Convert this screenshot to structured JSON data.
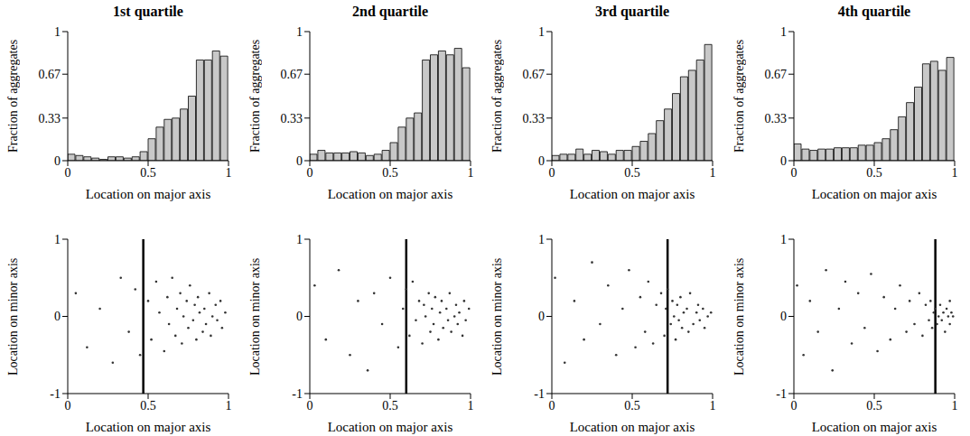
{
  "chart_data": [
    {
      "type": "histogram",
      "title": "1st quartile",
      "bins": [
        0,
        0.05,
        0.1,
        0.15,
        0.2,
        0.25,
        0.3,
        0.35,
        0.4,
        0.45,
        0.5,
        0.55,
        0.6,
        0.65,
        0.7,
        0.75,
        0.8,
        0.85,
        0.9,
        0.95,
        1
      ],
      "values": [
        0.05,
        0.04,
        0.03,
        0.02,
        0.01,
        0.03,
        0.03,
        0.02,
        0.03,
        0.07,
        0.17,
        0.26,
        0.32,
        0.33,
        0.4,
        0.5,
        0.78,
        0.78,
        0.85,
        0.81
      ],
      "color": "#c8c8c8",
      "xlim": [
        0,
        1
      ],
      "xticks": [
        0,
        0.5,
        1
      ],
      "ylim": [
        0,
        1
      ],
      "yticks": [
        0,
        0.33,
        0.67,
        1
      ],
      "x_label": "Location on major axis",
      "y_label": "Fraction of aggregates"
    },
    {
      "type": "histogram",
      "title": "2nd quartile",
      "bins": [
        0,
        0.05,
        0.1,
        0.15,
        0.2,
        0.25,
        0.3,
        0.35,
        0.4,
        0.45,
        0.5,
        0.55,
        0.6,
        0.65,
        0.7,
        0.75,
        0.8,
        0.85,
        0.9,
        0.95,
        1
      ],
      "values": [
        0.05,
        0.08,
        0.06,
        0.06,
        0.06,
        0.07,
        0.06,
        0.04,
        0.05,
        0.08,
        0.14,
        0.26,
        0.33,
        0.37,
        0.78,
        0.82,
        0.85,
        0.82,
        0.87,
        0.72
      ],
      "color": "#c8c8c8",
      "xlim": [
        0,
        1
      ],
      "xticks": [
        0,
        0.5,
        1
      ],
      "ylim": [
        0,
        1
      ],
      "yticks": [
        0,
        0.33,
        0.67,
        1
      ],
      "x_label": "Location on major axis",
      "y_label": "Fraction of aggregates"
    },
    {
      "type": "histogram",
      "title": "3rd quartile",
      "bins": [
        0,
        0.05,
        0.1,
        0.15,
        0.2,
        0.25,
        0.3,
        0.35,
        0.4,
        0.45,
        0.5,
        0.55,
        0.6,
        0.65,
        0.7,
        0.75,
        0.8,
        0.85,
        0.9,
        0.95,
        1
      ],
      "values": [
        0.04,
        0.05,
        0.05,
        0.09,
        0.05,
        0.08,
        0.07,
        0.05,
        0.08,
        0.08,
        0.11,
        0.15,
        0.21,
        0.31,
        0.4,
        0.52,
        0.65,
        0.7,
        0.78,
        0.9
      ],
      "color": "#c8c8c8",
      "xlim": [
        0,
        1
      ],
      "xticks": [
        0,
        0.5,
        1
      ],
      "ylim": [
        0,
        1
      ],
      "yticks": [
        0,
        0.33,
        0.67,
        1
      ],
      "x_label": "Location on major axis",
      "y_label": "Fraction of aggregates"
    },
    {
      "type": "histogram",
      "title": "4th quartile",
      "bins": [
        0,
        0.05,
        0.1,
        0.15,
        0.2,
        0.25,
        0.3,
        0.35,
        0.4,
        0.45,
        0.5,
        0.55,
        0.6,
        0.65,
        0.7,
        0.75,
        0.8,
        0.85,
        0.9,
        0.95,
        1
      ],
      "values": [
        0.13,
        0.09,
        0.08,
        0.09,
        0.09,
        0.1,
        0.1,
        0.1,
        0.12,
        0.12,
        0.14,
        0.17,
        0.24,
        0.34,
        0.45,
        0.57,
        0.75,
        0.77,
        0.7,
        0.8
      ],
      "color": "#c8c8c8",
      "xlim": [
        0,
        1
      ],
      "xticks": [
        0,
        0.5,
        1
      ],
      "ylim": [
        0,
        1
      ],
      "yticks": [
        0,
        0.33,
        0.67,
        1
      ],
      "x_label": "Location on major axis",
      "y_label": "Fraction of aggregates"
    },
    {
      "type": "scatter",
      "x": [
        0.05,
        0.12,
        0.2,
        0.28,
        0.33,
        0.38,
        0.42,
        0.45,
        0.5,
        0.52,
        0.55,
        0.57,
        0.6,
        0.62,
        0.63,
        0.65,
        0.67,
        0.68,
        0.7,
        0.71,
        0.72,
        0.74,
        0.75,
        0.76,
        0.78,
        0.79,
        0.8,
        0.81,
        0.82,
        0.84,
        0.85,
        0.86,
        0.88,
        0.89,
        0.9,
        0.92,
        0.93,
        0.95,
        0.96,
        0.98
      ],
      "y": [
        0.3,
        -0.4,
        0.1,
        -0.6,
        0.5,
        -0.2,
        0.35,
        -0.5,
        0.2,
        -0.3,
        0.45,
        0.05,
        -0.45,
        0.25,
        -0.1,
        0.5,
        -0.25,
        0.1,
        0.3,
        -0.35,
        0,
        0.2,
        -0.15,
        0.4,
        -0.05,
        0.15,
        -0.3,
        0.25,
        0.05,
        -0.2,
        0.1,
        -0.1,
        0.3,
        -0.25,
        0,
        0.15,
        -0.05,
        0.2,
        -0.15,
        0.05
      ],
      "threshold": 0.47,
      "color": "#333333",
      "xlim": [
        0,
        1
      ],
      "xticks": [
        0,
        0.5,
        1
      ],
      "ylim": [
        -1,
        1
      ],
      "yticks": [
        -1,
        0,
        1
      ],
      "x_label": "Location on major axis",
      "y_label": "Location on minor axis"
    },
    {
      "type": "scatter",
      "x": [
        0.03,
        0.1,
        0.18,
        0.25,
        0.3,
        0.36,
        0.4,
        0.45,
        0.5,
        0.55,
        0.58,
        0.6,
        0.62,
        0.64,
        0.66,
        0.68,
        0.7,
        0.71,
        0.72,
        0.74,
        0.75,
        0.76,
        0.77,
        0.78,
        0.8,
        0.81,
        0.82,
        0.83,
        0.85,
        0.86,
        0.87,
        0.88,
        0.9,
        0.91,
        0.92,
        0.93,
        0.95,
        0.96,
        0.97,
        0.99
      ],
      "y": [
        0.4,
        -0.3,
        0.6,
        -0.5,
        0.2,
        -0.7,
        0.3,
        -0.1,
        0.5,
        -0.4,
        0.1,
        0.35,
        -0.25,
        0.45,
        -0.05,
        0.2,
        -0.35,
        0.15,
        0,
        0.3,
        -0.2,
        0.1,
        -0.1,
        0.25,
        -0.3,
        0.05,
        0.2,
        -0.15,
        0.1,
        -0.05,
        0.3,
        -0.2,
        0,
        0.15,
        -0.1,
        0.05,
        -0.25,
        0.2,
        -0.05,
        0.1
      ],
      "threshold": 0.6,
      "color": "#333333",
      "xlim": [
        0,
        1
      ],
      "xticks": [
        0,
        0.5,
        1
      ],
      "ylim": [
        -1,
        1
      ],
      "yticks": [
        -1,
        0,
        1
      ],
      "x_label": "Location on major axis",
      "y_label": "Location on minor axis"
    },
    {
      "type": "scatter",
      "x": [
        0.02,
        0.08,
        0.14,
        0.2,
        0.25,
        0.3,
        0.35,
        0.4,
        0.44,
        0.48,
        0.52,
        0.55,
        0.58,
        0.6,
        0.63,
        0.65,
        0.68,
        0.7,
        0.71,
        0.72,
        0.74,
        0.75,
        0.76,
        0.77,
        0.78,
        0.79,
        0.8,
        0.81,
        0.82,
        0.84,
        0.85,
        0.86,
        0.88,
        0.9,
        0.91,
        0.92,
        0.94,
        0.95,
        0.97,
        0.99
      ],
      "y": [
        0.5,
        -0.6,
        0.2,
        -0.3,
        0.7,
        -0.1,
        0.4,
        -0.5,
        0.1,
        0.6,
        -0.4,
        0.25,
        -0.2,
        0.45,
        -0.35,
        0.15,
        0.3,
        -0.25,
        0.1,
        0.35,
        -0.1,
        0.2,
        0,
        -0.3,
        0.15,
        -0.05,
        0.25,
        -0.15,
        0.05,
        0.1,
        -0.2,
        0.3,
        -0.1,
        0.05,
        0.15,
        -0.05,
        0.1,
        -0.15,
        0,
        0.05
      ],
      "threshold": 0.72,
      "color": "#333333",
      "xlim": [
        0,
        1
      ],
      "xticks": [
        0,
        0.5,
        1
      ],
      "ylim": [
        -1,
        1
      ],
      "yticks": [
        -1,
        0,
        1
      ],
      "x_label": "Location on major axis",
      "y_label": "Location on minor axis"
    },
    {
      "type": "scatter",
      "x": [
        0.02,
        0.06,
        0.1,
        0.15,
        0.2,
        0.24,
        0.28,
        0.32,
        0.36,
        0.4,
        0.44,
        0.48,
        0.52,
        0.56,
        0.6,
        0.63,
        0.66,
        0.7,
        0.72,
        0.75,
        0.78,
        0.8,
        0.82,
        0.84,
        0.85,
        0.86,
        0.87,
        0.88,
        0.89,
        0.9,
        0.91,
        0.92,
        0.93,
        0.94,
        0.95,
        0.96,
        0.97,
        0.98,
        0.99,
        0.97
      ],
      "y": [
        0.4,
        -0.5,
        0.2,
        -0.2,
        0.6,
        -0.7,
        0.1,
        0.45,
        -0.35,
        0.3,
        -0.15,
        0.55,
        -0.45,
        0.25,
        -0.3,
        0.1,
        0.4,
        -0.2,
        0.2,
        -0.1,
        0.3,
        -0.25,
        0.15,
        -0.05,
        0.2,
        -0.15,
        0.05,
        0.1,
        -0.1,
        0,
        0.15,
        -0.05,
        0.05,
        -0.2,
        0.1,
        0,
        -0.1,
        0.05,
        0,
        0.2
      ],
      "threshold": 0.88,
      "color": "#333333",
      "xlim": [
        0,
        1
      ],
      "xticks": [
        0,
        0.5,
        1
      ],
      "ylim": [
        -1,
        1
      ],
      "yticks": [
        -1,
        0,
        1
      ],
      "x_label": "Location on major axis",
      "y_label": "Location on minor axis"
    }
  ]
}
